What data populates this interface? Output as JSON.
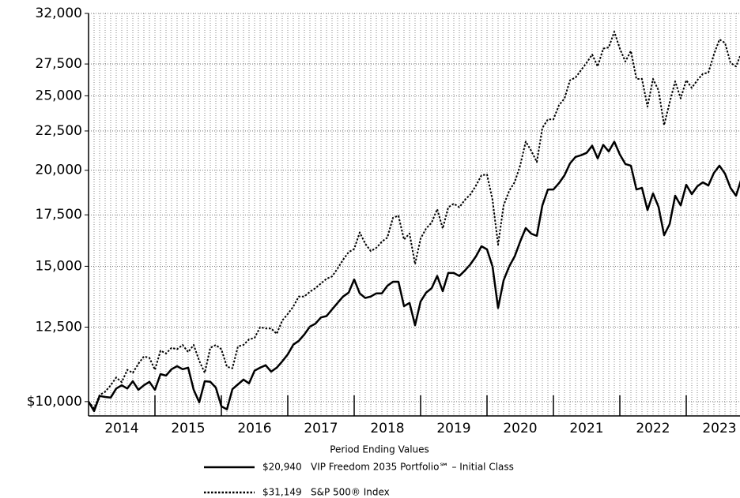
{
  "chart_data": {
    "type": "line",
    "log_scale": true,
    "grid": true,
    "legend_title": "Period Ending Values",
    "categories": [
      null,
      null,
      null,
      null,
      null,
      null,
      "2014",
      null,
      null,
      null,
      null,
      null,
      null,
      null,
      null,
      null,
      null,
      null,
      "2015",
      null,
      null,
      null,
      null,
      null,
      null,
      null,
      null,
      null,
      null,
      null,
      "2016",
      null,
      null,
      null,
      null,
      null,
      null,
      null,
      null,
      null,
      null,
      null,
      "2017",
      null,
      null,
      null,
      null,
      null,
      null,
      null,
      null,
      null,
      null,
      null,
      "2018",
      null,
      null,
      null,
      null,
      null,
      null,
      null,
      null,
      null,
      null,
      null,
      "2019",
      null,
      null,
      null,
      null,
      null,
      null,
      null,
      null,
      null,
      null,
      null,
      "2020",
      null,
      null,
      null,
      null,
      null,
      null,
      null,
      null,
      null,
      null,
      null,
      "2021",
      null,
      null,
      null,
      null,
      null,
      null,
      null,
      null,
      null,
      null,
      null,
      "2022",
      null,
      null,
      null,
      null,
      null,
      null,
      null,
      null,
      null,
      null,
      null,
      "2023",
      null,
      null,
      null,
      null,
      null,
      null
    ],
    "ylim": [
      9580,
      32000
    ],
    "yticks": [
      {
        "value": 10000,
        "label": "$10,000"
      },
      {
        "value": 12500,
        "label": "12,500"
      },
      {
        "value": 15000,
        "label": "15,000"
      },
      {
        "value": 17500,
        "label": "17,500"
      },
      {
        "value": 20000,
        "label": "20,000"
      },
      {
        "value": 22500,
        "label": "22,500"
      },
      {
        "value": 25000,
        "label": "25,000"
      },
      {
        "value": 27500,
        "label": "27,500"
      },
      {
        "value": 32000,
        "label": "32,000"
      }
    ],
    "series": [
      {
        "name": "VIP Freedom 2035 Portfolio℠ – Initial Class",
        "end_value_label": "$20,940",
        "color": "#000000",
        "dash": "solid",
        "values": [
          10000,
          9720,
          10170,
          10140,
          10120,
          10400,
          10500,
          10400,
          10630,
          10360,
          10500,
          10610,
          10360,
          10860,
          10810,
          11020,
          11120,
          11020,
          11070,
          10360,
          9980,
          10630,
          10610,
          10430,
          9860,
          9770,
          10380,
          10530,
          10680,
          10560,
          10970,
          11070,
          11150,
          10940,
          11070,
          11280,
          11520,
          11860,
          12000,
          12230,
          12520,
          12630,
          12870,
          12920,
          13180,
          13440,
          13700,
          13860,
          14420,
          13830,
          13640,
          13700,
          13830,
          13830,
          14150,
          14320,
          14320,
          13310,
          13440,
          12570,
          13500,
          13860,
          14050,
          14570,
          13920,
          14700,
          14700,
          14570,
          14810,
          15090,
          15450,
          15930,
          15780,
          14990,
          13240,
          14380,
          14990,
          15450,
          16160,
          16820,
          16540,
          16430,
          18000,
          18880,
          18880,
          19240,
          19700,
          20420,
          20820,
          20920,
          21070,
          21530,
          20720,
          21580,
          21160,
          21790,
          20970,
          20380,
          20280,
          18880,
          18970,
          17750,
          18660,
          17920,
          16470,
          17020,
          18530,
          18000,
          19150,
          18620,
          19060,
          19290,
          19110,
          19840,
          20280,
          19800,
          18970,
          18530,
          19520,
          20400,
          20940
        ]
      },
      {
        "name": "S&P 500® Index",
        "end_value_label": "$31,149",
        "color": "#000000",
        "dash": "dotted",
        "values": [
          10000,
          9800,
          10200,
          10300,
          10500,
          10750,
          10600,
          11000,
          10900,
          11200,
          11450,
          11400,
          11000,
          11650,
          11550,
          11750,
          11700,
          11850,
          11600,
          11850,
          11300,
          10900,
          11750,
          11850,
          11700,
          11100,
          11050,
          11800,
          11850,
          12050,
          12100,
          12500,
          12450,
          12450,
          12250,
          12750,
          13000,
          13300,
          13700,
          13700,
          13900,
          14050,
          14250,
          14450,
          14550,
          14900,
          15300,
          15650,
          15800,
          16600,
          16050,
          15700,
          15850,
          16150,
          16350,
          17350,
          17450,
          16250,
          16550,
          15100,
          16300,
          16800,
          17100,
          17800,
          16800,
          17900,
          18100,
          17900,
          18300,
          18600,
          19100,
          19700,
          19750,
          18300,
          16000,
          18000,
          18800,
          19300,
          20300,
          21800,
          21200,
          20500,
          22700,
          23300,
          23300,
          24300,
          24800,
          26200,
          26400,
          27000,
          27600,
          28300,
          27300,
          28800,
          28900,
          30300,
          28800,
          27700,
          28600,
          26300,
          26300,
          24200,
          26300,
          25400,
          22900,
          24500,
          26100,
          24800,
          26200,
          25600,
          26200,
          26700,
          26800,
          28300,
          29600,
          29300,
          27600,
          27300,
          28500,
          30000,
          31149
        ]
      }
    ]
  }
}
